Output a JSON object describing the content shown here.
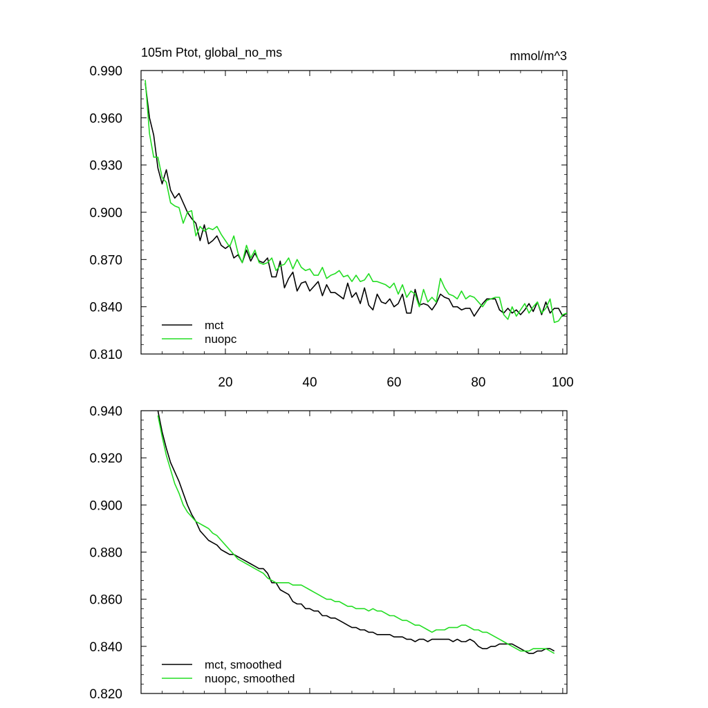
{
  "colors": {
    "mct": "#000000",
    "nuopc": "#22dd22",
    "axis": "#000000"
  },
  "chart_data": [
    {
      "type": "line",
      "title": "105m Ptot, global_no_ms",
      "units": "mmol/m^3",
      "xlim": [
        0,
        101
      ],
      "ylim": [
        0.81,
        0.99
      ],
      "xticks": [
        20,
        40,
        60,
        80,
        100
      ],
      "xticklabels": [
        "20",
        "40",
        "60",
        "80",
        "100"
      ],
      "yticks": [
        0.81,
        0.84,
        0.87,
        0.9,
        0.93,
        0.96,
        0.99
      ],
      "yticklabels": [
        "0.810",
        "0.840",
        "0.870",
        "0.900",
        "0.930",
        "0.960",
        "0.990"
      ],
      "legend_position": "bottom-left",
      "series": [
        {
          "name": "mct",
          "color": "#000000",
          "x": [
            1,
            2,
            3,
            4,
            5,
            6,
            7,
            8,
            9,
            10,
            11,
            12,
            13,
            14,
            15,
            16,
            17,
            18,
            19,
            20,
            21,
            22,
            23,
            24,
            25,
            26,
            27,
            28,
            29,
            30,
            31,
            32,
            33,
            34,
            35,
            36,
            37,
            38,
            39,
            40,
            41,
            42,
            43,
            44,
            45,
            46,
            47,
            48,
            49,
            50,
            51,
            52,
            53,
            54,
            55,
            56,
            57,
            58,
            59,
            60,
            61,
            62,
            63,
            64,
            65,
            66,
            67,
            68,
            69,
            70,
            71,
            72,
            73,
            74,
            75,
            76,
            77,
            78,
            79,
            80,
            81,
            82,
            83,
            84,
            85,
            86,
            87,
            88,
            89,
            90,
            91,
            92,
            93,
            94,
            95,
            96,
            97,
            98,
            99,
            100,
            101
          ],
          "values": [
            0.982,
            0.96,
            0.949,
            0.928,
            0.918,
            0.927,
            0.914,
            0.909,
            0.912,
            0.906,
            0.9,
            0.896,
            0.893,
            0.882,
            0.892,
            0.88,
            0.882,
            0.885,
            0.879,
            0.877,
            0.879,
            0.871,
            0.873,
            0.868,
            0.876,
            0.869,
            0.874,
            0.869,
            0.868,
            0.871,
            0.859,
            0.859,
            0.869,
            0.852,
            0.858,
            0.862,
            0.85,
            0.855,
            0.856,
            0.85,
            0.853,
            0.856,
            0.847,
            0.854,
            0.849,
            0.849,
            0.847,
            0.845,
            0.855,
            0.846,
            0.849,
            0.842,
            0.852,
            0.841,
            0.838,
            0.848,
            0.843,
            0.842,
            0.845,
            0.84,
            0.842,
            0.848,
            0.836,
            0.836,
            0.851,
            0.841,
            0.842,
            0.841,
            0.838,
            0.842,
            0.848,
            0.846,
            0.845,
            0.84,
            0.84,
            0.838,
            0.839,
            0.839,
            0.834,
            0.838,
            0.842,
            0.845,
            0.845,
            0.845,
            0.838,
            0.836,
            0.839,
            0.836,
            0.838,
            0.835,
            0.838,
            0.842,
            0.837,
            0.843,
            0.835,
            0.843,
            0.836,
            0.839,
            0.839,
            0.834,
            0.836
          ]
        },
        {
          "name": "nuopc",
          "color": "#22dd22",
          "x": [
            1,
            2,
            3,
            4,
            5,
            6,
            7,
            8,
            9,
            10,
            11,
            12,
            13,
            14,
            15,
            16,
            17,
            18,
            19,
            20,
            21,
            22,
            23,
            24,
            25,
            26,
            27,
            28,
            29,
            30,
            31,
            32,
            33,
            34,
            35,
            36,
            37,
            38,
            39,
            40,
            41,
            42,
            43,
            44,
            45,
            46,
            47,
            48,
            49,
            50,
            51,
            52,
            53,
            54,
            55,
            56,
            57,
            58,
            59,
            60,
            61,
            62,
            63,
            64,
            65,
            66,
            67,
            68,
            69,
            70,
            71,
            72,
            73,
            74,
            75,
            76,
            77,
            78,
            79,
            80,
            81,
            82,
            83,
            84,
            85,
            86,
            87,
            88,
            89,
            90,
            91,
            92,
            93,
            94,
            95,
            96,
            97,
            98,
            99,
            100,
            101
          ],
          "values": [
            0.984,
            0.95,
            0.935,
            0.935,
            0.922,
            0.919,
            0.906,
            0.904,
            0.903,
            0.893,
            0.9,
            0.901,
            0.885,
            0.891,
            0.888,
            0.89,
            0.889,
            0.891,
            0.886,
            0.882,
            0.878,
            0.885,
            0.874,
            0.868,
            0.879,
            0.871,
            0.876,
            0.868,
            0.867,
            0.868,
            0.871,
            0.863,
            0.866,
            0.867,
            0.871,
            0.864,
            0.87,
            0.865,
            0.863,
            0.864,
            0.86,
            0.86,
            0.865,
            0.858,
            0.86,
            0.861,
            0.863,
            0.859,
            0.86,
            0.856,
            0.86,
            0.856,
            0.857,
            0.861,
            0.856,
            0.856,
            0.855,
            0.854,
            0.852,
            0.855,
            0.848,
            0.854,
            0.846,
            0.85,
            0.848,
            0.84,
            0.851,
            0.843,
            0.846,
            0.843,
            0.858,
            0.852,
            0.848,
            0.847,
            0.845,
            0.85,
            0.845,
            0.847,
            0.846,
            0.843,
            0.84,
            0.844,
            0.845,
            0.846,
            0.846,
            0.835,
            0.832,
            0.84,
            0.834,
            0.838,
            0.842,
            0.836,
            0.84,
            0.843,
            0.836,
            0.839,
            0.845,
            0.83,
            0.831,
            0.835,
            0.836
          ]
        }
      ]
    },
    {
      "type": "line",
      "xlim": [
        0,
        101
      ],
      "ylim": [
        0.82,
        0.94
      ],
      "xticks": [
        20,
        40,
        60,
        80,
        100
      ],
      "xticklabels": [],
      "yticks": [
        0.82,
        0.84,
        0.86,
        0.88,
        0.9,
        0.92,
        0.94
      ],
      "yticklabels": [
        "0.820",
        "0.840",
        "0.860",
        "0.880",
        "0.900",
        "0.920",
        "0.940"
      ],
      "legend_position": "bottom-left",
      "series": [
        {
          "name": "mct, smoothed",
          "color": "#000000",
          "x": [
            4,
            5,
            6,
            7,
            8,
            9,
            10,
            11,
            12,
            13,
            14,
            15,
            16,
            17,
            18,
            19,
            20,
            21,
            22,
            23,
            24,
            25,
            26,
            27,
            28,
            29,
            30,
            31,
            32,
            33,
            34,
            35,
            36,
            37,
            38,
            39,
            40,
            41,
            42,
            43,
            44,
            45,
            46,
            47,
            48,
            49,
            50,
            51,
            52,
            53,
            54,
            55,
            56,
            57,
            58,
            59,
            60,
            61,
            62,
            63,
            64,
            65,
            66,
            67,
            68,
            69,
            70,
            71,
            72,
            73,
            74,
            75,
            76,
            77,
            78,
            79,
            80,
            81,
            82,
            83,
            84,
            85,
            86,
            87,
            88,
            89,
            90,
            91,
            92,
            93,
            94,
            95,
            96,
            97,
            98
          ],
          "values": [
            0.94,
            0.931,
            0.924,
            0.918,
            0.914,
            0.91,
            0.905,
            0.9,
            0.896,
            0.893,
            0.889,
            0.887,
            0.885,
            0.884,
            0.883,
            0.881,
            0.88,
            0.879,
            0.879,
            0.878,
            0.877,
            0.876,
            0.875,
            0.874,
            0.873,
            0.873,
            0.871,
            0.867,
            0.867,
            0.864,
            0.863,
            0.862,
            0.859,
            0.858,
            0.858,
            0.856,
            0.856,
            0.855,
            0.855,
            0.853,
            0.853,
            0.852,
            0.852,
            0.851,
            0.85,
            0.849,
            0.848,
            0.848,
            0.847,
            0.847,
            0.846,
            0.846,
            0.845,
            0.845,
            0.845,
            0.845,
            0.844,
            0.844,
            0.844,
            0.843,
            0.843,
            0.842,
            0.843,
            0.843,
            0.842,
            0.843,
            0.843,
            0.843,
            0.843,
            0.843,
            0.842,
            0.843,
            0.842,
            0.842,
            0.843,
            0.842,
            0.84,
            0.839,
            0.839,
            0.84,
            0.84,
            0.841,
            0.841,
            0.841,
            0.841,
            0.84,
            0.839,
            0.838,
            0.837,
            0.837,
            0.838,
            0.838,
            0.839,
            0.839,
            0.838
          ]
        },
        {
          "name": "nuopc, smoothed",
          "color": "#22dd22",
          "x": [
            4,
            5,
            6,
            7,
            8,
            9,
            10,
            11,
            12,
            13,
            14,
            15,
            16,
            17,
            18,
            19,
            20,
            21,
            22,
            23,
            24,
            25,
            26,
            27,
            28,
            29,
            30,
            31,
            32,
            33,
            34,
            35,
            36,
            37,
            38,
            39,
            40,
            41,
            42,
            43,
            44,
            45,
            46,
            47,
            48,
            49,
            50,
            51,
            52,
            53,
            54,
            55,
            56,
            57,
            58,
            59,
            60,
            61,
            62,
            63,
            64,
            65,
            66,
            67,
            68,
            69,
            70,
            71,
            72,
            73,
            74,
            75,
            76,
            77,
            78,
            79,
            80,
            81,
            82,
            83,
            84,
            85,
            86,
            87,
            88,
            89,
            90,
            91,
            92,
            93,
            94,
            95,
            96,
            97,
            98
          ],
          "values": [
            0.938,
            0.929,
            0.921,
            0.915,
            0.909,
            0.905,
            0.9,
            0.897,
            0.895,
            0.893,
            0.892,
            0.891,
            0.89,
            0.888,
            0.887,
            0.885,
            0.883,
            0.881,
            0.879,
            0.877,
            0.876,
            0.875,
            0.874,
            0.873,
            0.872,
            0.871,
            0.869,
            0.868,
            0.867,
            0.867,
            0.867,
            0.867,
            0.866,
            0.866,
            0.866,
            0.865,
            0.864,
            0.863,
            0.862,
            0.861,
            0.86,
            0.86,
            0.859,
            0.859,
            0.858,
            0.857,
            0.857,
            0.856,
            0.856,
            0.856,
            0.855,
            0.856,
            0.855,
            0.855,
            0.854,
            0.853,
            0.853,
            0.852,
            0.851,
            0.851,
            0.85,
            0.849,
            0.849,
            0.848,
            0.847,
            0.846,
            0.847,
            0.847,
            0.847,
            0.848,
            0.848,
            0.848,
            0.849,
            0.849,
            0.848,
            0.847,
            0.847,
            0.846,
            0.846,
            0.845,
            0.844,
            0.843,
            0.842,
            0.841,
            0.84,
            0.839,
            0.838,
            0.838,
            0.838,
            0.839,
            0.839,
            0.839,
            0.839,
            0.838,
            0.837
          ]
        }
      ]
    }
  ]
}
